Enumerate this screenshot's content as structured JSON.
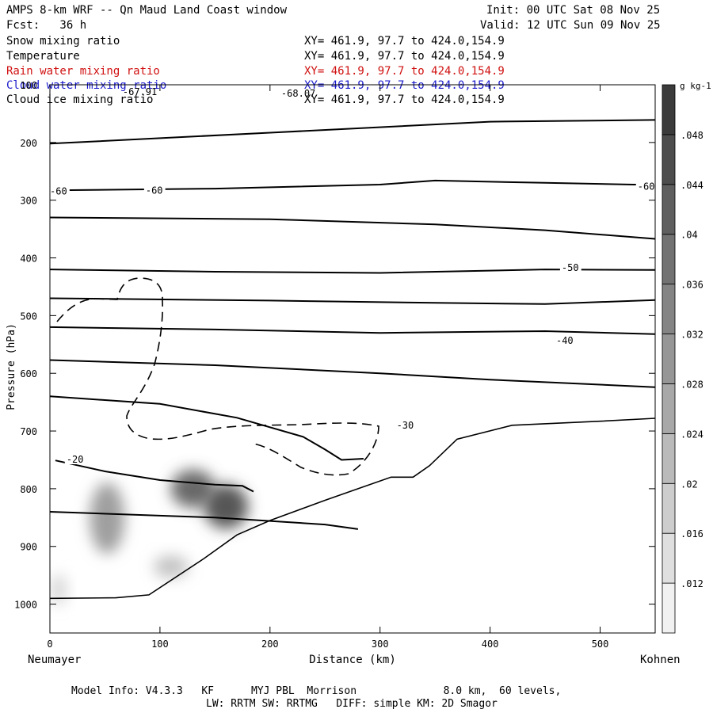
{
  "header": {
    "title": "AMPS 8-km WRF -- Qn Maud Land Coast window",
    "forecast": "Fcst:   36 h",
    "init": "Init: 00 UTC Sat 08 Nov 25",
    "valid": "Valid: 12 UTC Sun 09 Nov 25"
  },
  "legend": [
    {
      "name": "Snow mixing ratio",
      "xy": "XY= 461.9, 97.7 to 424.0,154.9",
      "color": "#000000"
    },
    {
      "name": "Temperature",
      "xy": "XY= 461.9, 97.7 to 424.0,154.9",
      "color": "#000000"
    },
    {
      "name": "Rain water mixing ratio",
      "xy": "XY= 461.9, 97.7 to 424.0,154.9",
      "color": "#d01010"
    },
    {
      "name": "Cloud water mixing ratio",
      "xy": "XY= 461.9, 97.7 to 424.0,154.9",
      "color": "#1a1acc"
    },
    {
      "name": "Cloud ice mixing ratio",
      "xy": "XY= 461.9, 97.7 to 424.0,154.9",
      "color": "#000000"
    }
  ],
  "footer": {
    "line1": "Model Info: V4.3.3   KF      MYJ PBL  Morrison              8.0 km,  60 levels,",
    "line2": "LW: RRTM SW: RRTMG   DIFF: simple KM: 2D Smagor"
  },
  "chart_data": {
    "type": "cross-section",
    "title": "AMPS 8-km WRF -- Qn Maud Land Coast window",
    "xlabel": "Distance (km)",
    "ylabel": "Pressure (hPa)",
    "xlim": [
      0,
      550
    ],
    "ylim": [
      100,
      1050
    ],
    "xticks": [
      0,
      100,
      200,
      300,
      400,
      500
    ],
    "yticks": [
      200,
      300,
      400,
      500,
      600,
      700,
      800,
      900,
      1000
    ],
    "x_end_labels": {
      "left": "Neumayer",
      "right": "Kohnen"
    },
    "colorbar": {
      "unit": "g kg-1",
      "levels": [
        0.012,
        0.016,
        0.02,
        0.024,
        0.028,
        0.032,
        0.036,
        0.04,
        0.044,
        0.048
      ],
      "tick_labels": [
        ".012",
        ".016",
        ".02",
        ".024",
        ".028",
        ".032",
        ".036",
        ".04",
        ".044",
        ".048"
      ]
    },
    "extrema_labels": [
      {
        "text": "-67.91",
        "x": 82,
        "p": 111
      },
      {
        "text": "-68.07",
        "x": 226,
        "p": 114
      }
    ],
    "temperature_contours": [
      {
        "label": "-60",
        "label_pos": [
          [
            0,
            283
          ],
          [
            87,
            282
          ],
          [
            534,
            275
          ]
        ],
        "points": [
          [
            0,
            283
          ],
          [
            150,
            280
          ],
          [
            300,
            273
          ],
          [
            350,
            266
          ],
          [
            450,
            270
          ],
          [
            530,
            273
          ],
          [
            550,
            273
          ]
        ]
      },
      {
        "label": "-50",
        "label_pos": [
          [
            465,
            416
          ]
        ],
        "points": [
          [
            0,
            420
          ],
          [
            150,
            424
          ],
          [
            300,
            426
          ],
          [
            450,
            420
          ],
          [
            550,
            421
          ]
        ]
      },
      {
        "label": "-40",
        "label_pos": [
          [
            460,
            542
          ]
        ],
        "points": [
          [
            0,
            520
          ],
          [
            150,
            524
          ],
          [
            300,
            530
          ],
          [
            450,
            527
          ],
          [
            550,
            532
          ]
        ]
      },
      {
        "label": "-30",
        "label_pos": [
          [
            315,
            689
          ]
        ],
        "points": [
          [
            0,
            640
          ],
          [
            100,
            653
          ],
          [
            170,
            677
          ],
          [
            230,
            710
          ],
          [
            250,
            732
          ],
          [
            265,
            750
          ],
          [
            285,
            748
          ]
        ]
      },
      {
        "label": "-20",
        "label_pos": [
          [
            15,
            748
          ]
        ],
        "points": [
          [
            5,
            751
          ],
          [
            50,
            770
          ],
          [
            100,
            785
          ],
          [
            150,
            793
          ],
          [
            175,
            795
          ],
          [
            185,
            805
          ]
        ]
      }
    ],
    "temperature_unlabeled_contours": [
      {
        "points": [
          [
            0,
            202
          ],
          [
            200,
            183
          ],
          [
            400,
            164
          ],
          [
            550,
            161
          ]
        ]
      },
      {
        "points": [
          [
            0,
            330
          ],
          [
            200,
            333
          ],
          [
            350,
            342
          ],
          [
            450,
            352
          ],
          [
            550,
            367
          ]
        ]
      },
      {
        "points": [
          [
            0,
            470
          ],
          [
            200,
            474
          ],
          [
            350,
            478
          ],
          [
            450,
            480
          ],
          [
            550,
            473
          ]
        ]
      },
      {
        "points": [
          [
            0,
            577
          ],
          [
            150,
            586
          ],
          [
            300,
            600
          ],
          [
            400,
            611
          ],
          [
            550,
            624
          ]
        ]
      },
      {
        "points": [
          [
            0,
            840
          ],
          [
            150,
            850
          ],
          [
            250,
            862
          ],
          [
            280,
            870
          ]
        ]
      }
    ],
    "shading_blobs": [
      {
        "x": 52,
        "p": 851,
        "value": 0.028
      },
      {
        "x": 130,
        "p": 800,
        "value": 0.04
      },
      {
        "x": 160,
        "p": 831,
        "value": 0.044
      },
      {
        "x": 110,
        "p": 935,
        "value": 0.02
      },
      {
        "x": 8,
        "p": 975,
        "value": 0.016
      }
    ],
    "terrain_surface": [
      [
        0,
        990
      ],
      [
        60,
        989
      ],
      [
        90,
        984
      ],
      [
        140,
        921
      ],
      [
        170,
        880
      ],
      [
        200,
        855
      ],
      [
        250,
        820
      ],
      [
        280,
        800
      ],
      [
        310,
        780
      ],
      [
        330,
        780
      ],
      [
        345,
        760
      ],
      [
        370,
        714
      ],
      [
        420,
        690
      ],
      [
        500,
        683
      ],
      [
        550,
        678
      ]
    ]
  }
}
